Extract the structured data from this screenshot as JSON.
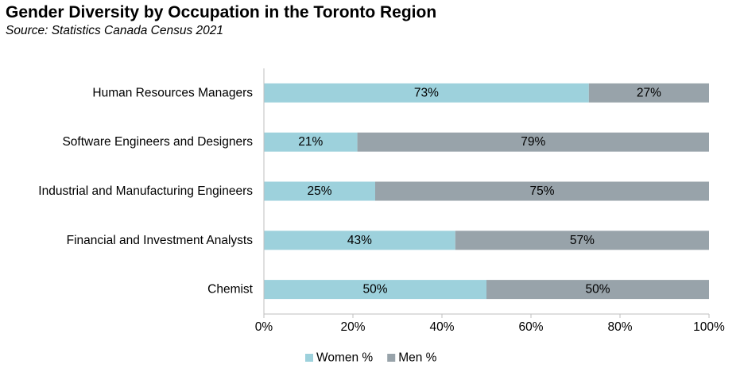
{
  "chart_data": {
    "type": "bar",
    "orientation": "horizontal",
    "stacked": true,
    "title": "Gender Diversity by Occupation in the Toronto Region",
    "subtitle": "Source: Statistics Canada Census 2021",
    "categories": [
      "Human Resources Managers",
      "Software Engineers and Designers",
      "Industrial and Manufacturing Engineers",
      "Financial and Investment Analysts",
      "Chemist"
    ],
    "series": [
      {
        "name": "Women %",
        "color": "#9dd1dc",
        "values": [
          73,
          21,
          25,
          43,
          50
        ],
        "labels": [
          "73%",
          "21%",
          "25%",
          "43%",
          "50%"
        ]
      },
      {
        "name": "Men %",
        "color": "#98a3aa",
        "values": [
          27,
          79,
          75,
          57,
          50
        ],
        "labels": [
          "27%",
          "79%",
          "75%",
          "57%",
          "50%"
        ]
      }
    ],
    "xlim": [
      0,
      100
    ],
    "xticks": [
      0,
      20,
      40,
      60,
      80,
      100
    ],
    "xtick_labels": [
      "0%",
      "20%",
      "40%",
      "60%",
      "80%",
      "100%"
    ],
    "grid": false,
    "legend": "bottom"
  }
}
